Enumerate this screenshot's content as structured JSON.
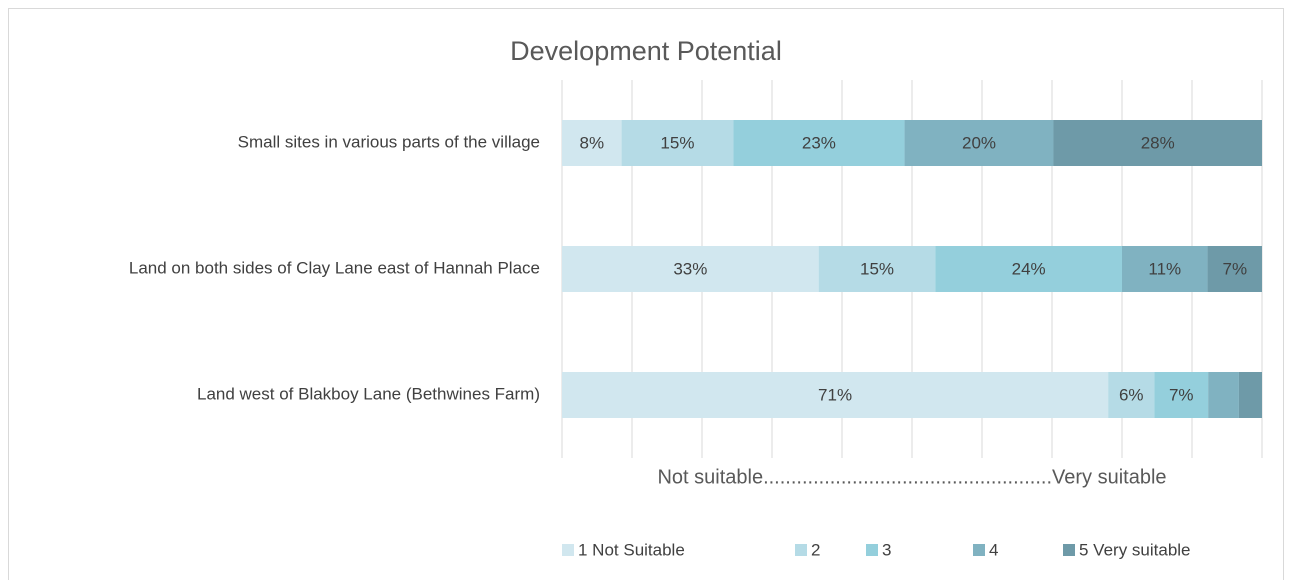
{
  "chart_data": {
    "type": "bar",
    "orientation": "horizontal",
    "stacked": "percent",
    "title": "Development Potential",
    "xlabel": "Not suitable....................................................Very suitable",
    "categories": [
      "Small sites in various parts of the village",
      "Land on both sides of Clay Lane east of Hannah Place",
      "Land west of Blakboy Lane (Bethwines Farm)"
    ],
    "series": [
      {
        "name": "1 Not Suitable",
        "color": "#d1e7ef",
        "values": [
          8,
          33,
          71
        ],
        "value_labels": [
          "8%",
          "33%",
          "71%"
        ]
      },
      {
        "name": "2",
        "color": "#b5dbe6",
        "values": [
          15,
          15,
          6
        ],
        "value_labels": [
          "15%",
          "15%",
          "6%"
        ]
      },
      {
        "name": "3",
        "color": "#94cfdc",
        "values": [
          23,
          24,
          7
        ],
        "value_labels": [
          "23%",
          "24%",
          "7%"
        ]
      },
      {
        "name": "4",
        "color": "#80b2c1",
        "values": [
          20,
          11,
          4
        ],
        "value_labels": [
          "20%",
          "11%",
          null
        ]
      },
      {
        "name": "5 Very suitable",
        "color": "#6e9aa8",
        "values": [
          28,
          7,
          3
        ],
        "value_labels": [
          "28%",
          "7%",
          null
        ]
      }
    ],
    "xlim": [
      0,
      100
    ],
    "xticks": [
      0,
      10,
      20,
      30,
      40,
      50,
      60,
      70,
      80,
      90,
      100
    ],
    "grid": true,
    "legend": "bottom"
  }
}
